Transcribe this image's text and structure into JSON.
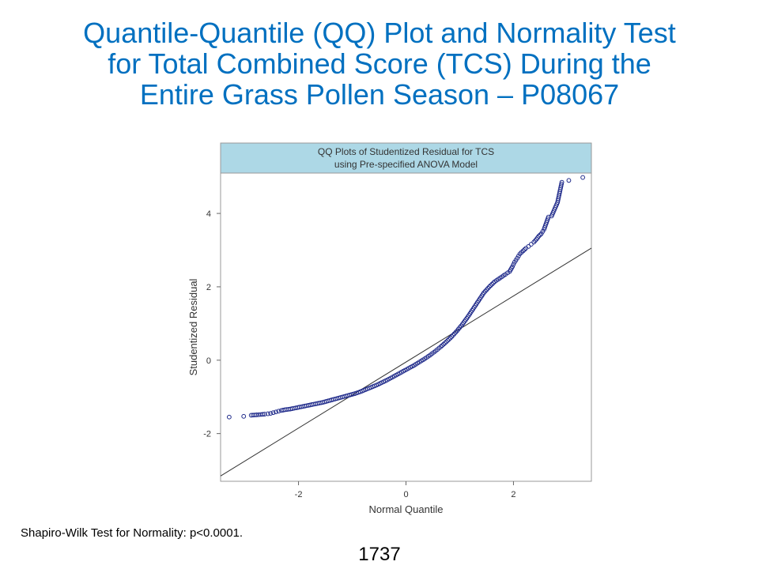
{
  "slide": {
    "title_lines": [
      "Quantile-Quantile (QQ) Plot and Normality Test",
      "for Total Combined Score (TCS) During the",
      "Entire Grass Pollen Season – P08067"
    ],
    "footnote": "Shapiro-Wilk Test for Normality: p<0.0001.",
    "page_number": "1737"
  },
  "colors": {
    "title": "#0070C0",
    "chart_header_bg": "#ADD8E6",
    "points": "#1F2A8A",
    "reference_line": "#333333"
  },
  "chart_data": {
    "type": "scatter",
    "title_lines": [
      "QQ Plots of Studentized Residual for TCS",
      "using Pre-specified ANOVA Model"
    ],
    "xlabel": "Normal Quantile",
    "ylabel": "Studentized Residual",
    "xlim": [
      -3.45,
      3.45
    ],
    "ylim": [
      -3.3,
      5.1
    ],
    "x_ticks": [
      -2,
      0,
      2
    ],
    "y_ticks": [
      -2,
      0,
      2,
      4
    ],
    "x_tick_labels": [
      "-2",
      "0",
      "2"
    ],
    "y_tick_labels": [
      "-2",
      "0",
      "2",
      "4"
    ],
    "grid": false,
    "reference_line": {
      "slope": 0.9,
      "intercept": -0.05
    },
    "points": [
      [
        -3.29,
        -1.55
      ],
      [
        -3.02,
        -1.53
      ],
      [
        -2.88,
        -1.5
      ],
      [
        -2.78,
        -1.49
      ],
      [
        -2.7,
        -1.48
      ],
      [
        -2.63,
        -1.47
      ],
      [
        -2.57,
        -1.46
      ],
      [
        -2.52,
        -1.45
      ],
      [
        -2.47,
        -1.43
      ],
      [
        -2.42,
        -1.41
      ],
      [
        -2.37,
        -1.39
      ],
      [
        -2.32,
        -1.37
      ],
      [
        -2.25,
        -1.35
      ],
      [
        -2.15,
        -1.33
      ],
      [
        -2.05,
        -1.3
      ],
      [
        -1.95,
        -1.27
      ],
      [
        -1.85,
        -1.24
      ],
      [
        -1.75,
        -1.21
      ],
      [
        -1.65,
        -1.18
      ],
      [
        -1.55,
        -1.15
      ],
      [
        -1.45,
        -1.11
      ],
      [
        -1.35,
        -1.07
      ],
      [
        -1.25,
        -1.03
      ],
      [
        -1.15,
        -0.99
      ],
      [
        -1.05,
        -0.95
      ],
      [
        -0.95,
        -0.91
      ],
      [
        -0.85,
        -0.86
      ],
      [
        -0.75,
        -0.8
      ],
      [
        -0.65,
        -0.74
      ],
      [
        -0.55,
        -0.68
      ],
      [
        -0.45,
        -0.61
      ],
      [
        -0.35,
        -0.54
      ],
      [
        -0.25,
        -0.46
      ],
      [
        -0.15,
        -0.38
      ],
      [
        -0.05,
        -0.3
      ],
      [
        0.05,
        -0.22
      ],
      [
        0.15,
        -0.14
      ],
      [
        0.25,
        -0.05
      ],
      [
        0.35,
        0.04
      ],
      [
        0.45,
        0.14
      ],
      [
        0.55,
        0.25
      ],
      [
        0.65,
        0.37
      ],
      [
        0.75,
        0.5
      ],
      [
        0.85,
        0.64
      ],
      [
        0.95,
        0.8
      ],
      [
        1.05,
        0.98
      ],
      [
        1.15,
        1.18
      ],
      [
        1.25,
        1.4
      ],
      [
        1.35,
        1.62
      ],
      [
        1.45,
        1.84
      ],
      [
        1.55,
        2.0
      ],
      [
        1.65,
        2.14
      ],
      [
        1.75,
        2.24
      ],
      [
        1.85,
        2.34
      ],
      [
        1.93,
        2.42
      ],
      [
        1.98,
        2.55
      ],
      [
        2.02,
        2.67
      ],
      [
        2.07,
        2.78
      ],
      [
        2.12,
        2.9
      ],
      [
        2.18,
        2.98
      ],
      [
        2.23,
        3.05
      ],
      [
        2.28,
        3.1
      ],
      [
        2.33,
        3.16
      ],
      [
        2.38,
        3.22
      ],
      [
        2.43,
        3.3
      ],
      [
        2.47,
        3.38
      ],
      [
        2.52,
        3.45
      ],
      [
        2.57,
        3.57
      ],
      [
        2.65,
        3.9
      ],
      [
        2.71,
        3.93
      ],
      [
        2.82,
        4.3
      ],
      [
        2.9,
        4.85
      ],
      [
        3.03,
        4.9
      ],
      [
        3.29,
        4.98
      ]
    ]
  }
}
